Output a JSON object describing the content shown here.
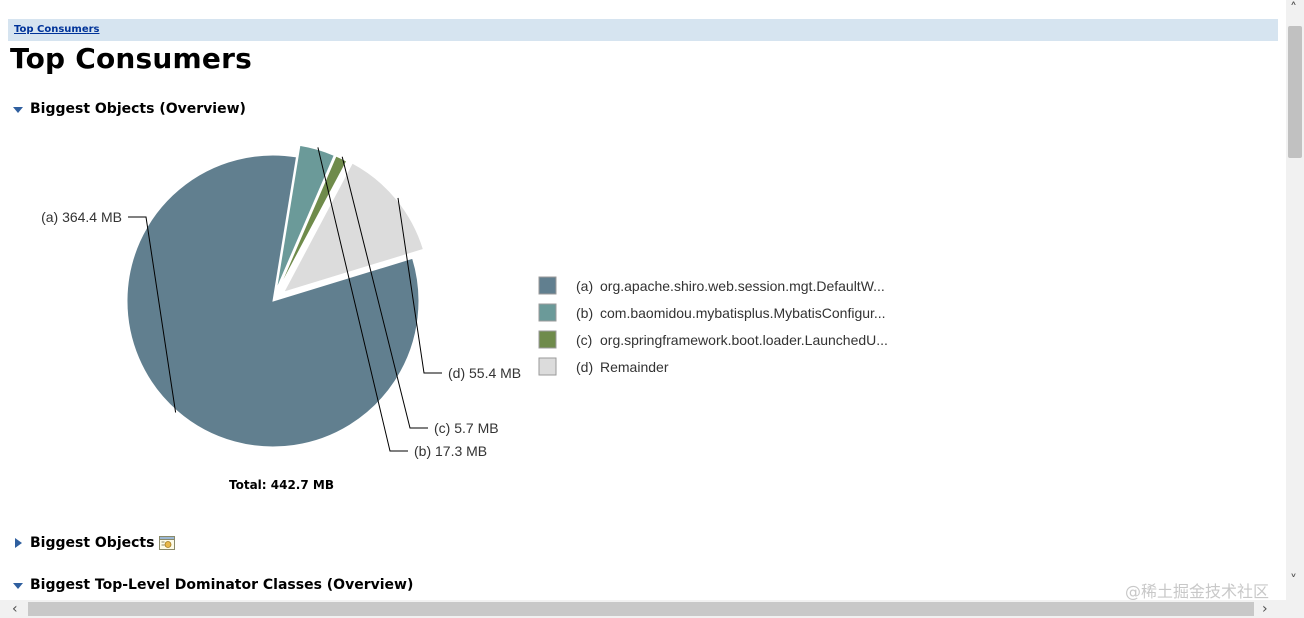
{
  "breadcrumb": {
    "label": "Top Consumers"
  },
  "page": {
    "title": "Top Consumers"
  },
  "sections": [
    {
      "label": "Biggest Objects (Overview)",
      "expanded": true
    },
    {
      "label": "Biggest Objects",
      "expanded": false
    },
    {
      "label": "Biggest Top-Level Dominator Classes (Overview)",
      "expanded": true
    }
  ],
  "chart_data": {
    "type": "pie",
    "unit": "MB",
    "slices": [
      {
        "key": "(a)",
        "label": "org.apache.shiro.web.session.mgt.DefaultW...",
        "value": 364.4,
        "value_label": "364.4 MB",
        "color": "#617f8f"
      },
      {
        "key": "(b)",
        "label": "com.baomidou.mybatisplus.MybatisConfigur...",
        "value": 17.3,
        "value_label": "17.3 MB",
        "color": "#6b9a99"
      },
      {
        "key": "(c)",
        "label": "org.springframework.boot.loader.LaunchedU...",
        "value": 5.7,
        "value_label": "5.7 MB",
        "color": "#6f8b4b"
      },
      {
        "key": "(d)",
        "label": "Remainder",
        "value": 55.4,
        "value_label": "55.4 MB",
        "color": "#dcdcdc"
      }
    ],
    "total_label": "Total: 442.7 MB",
    "legend_position": "right"
  },
  "watermark": {
    "text": "@稀土掘金技术社区"
  },
  "colors": {
    "breadcrumb_bg": "#d6e4f0",
    "link": "#003399",
    "toggle": "#2f5f9f"
  }
}
